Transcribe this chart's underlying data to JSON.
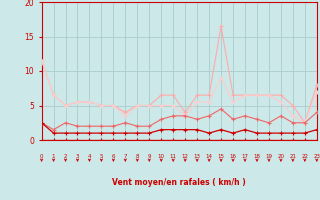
{
  "x": [
    0,
    1,
    2,
    3,
    4,
    5,
    6,
    7,
    8,
    9,
    10,
    11,
    12,
    13,
    14,
    15,
    16,
    17,
    18,
    19,
    20,
    21,
    22,
    23
  ],
  "series": {
    "line1_dark_top": [
      11.5,
      6.5,
      5.0,
      5.5,
      5.5,
      5.0,
      5.0,
      4.0,
      5.0,
      5.0,
      6.5,
      6.5,
      4.0,
      6.5,
      6.5,
      16.5,
      6.5,
      6.5,
      6.5,
      6.5,
      6.5,
      5.0,
      2.5,
      8.0
    ],
    "line2_mid_top": [
      11.5,
      6.5,
      5.0,
      5.5,
      5.5,
      5.0,
      5.0,
      3.5,
      5.0,
      5.0,
      5.0,
      5.0,
      3.5,
      5.5,
      5.5,
      9.0,
      5.5,
      6.5,
      6.5,
      6.5,
      5.5,
      3.5,
      2.5,
      7.0
    ],
    "line3_medium": [
      2.5,
      1.5,
      2.5,
      2.0,
      2.0,
      2.0,
      2.0,
      2.5,
      2.0,
      2.0,
      3.0,
      3.5,
      3.5,
      3.0,
      3.5,
      4.5,
      3.0,
      3.5,
      3.0,
      2.5,
      3.5,
      2.5,
      2.5,
      4.0
    ],
    "line4_dark": [
      2.5,
      1.0,
      1.0,
      1.0,
      1.0,
      1.0,
      1.0,
      1.0,
      1.0,
      1.0,
      1.5,
      1.5,
      1.5,
      1.5,
      1.0,
      1.5,
      1.0,
      1.5,
      1.0,
      1.0,
      1.0,
      1.0,
      1.0,
      1.5
    ],
    "line5_dark": [
      0.0,
      0.0,
      0.0,
      0.0,
      0.0,
      0.0,
      0.0,
      0.0,
      0.0,
      0.0,
      0.0,
      0.0,
      0.0,
      0.0,
      0.0,
      0.0,
      0.0,
      0.0,
      0.0,
      0.0,
      0.0,
      0.0,
      0.0,
      0.0
    ]
  },
  "bg": "#cce8e8",
  "grid_color": "#aacccc",
  "c_dark": "#cc0000",
  "c_medium": "#ee6666",
  "c_light": "#ffaaaa",
  "c_lighter": "#ffcccc",
  "xlabel": "Vent moyen/en rafales ( km/h )",
  "ylim": [
    0,
    20
  ],
  "yticks": [
    0,
    5,
    10,
    15,
    20
  ],
  "xlim": [
    0,
    23
  ]
}
